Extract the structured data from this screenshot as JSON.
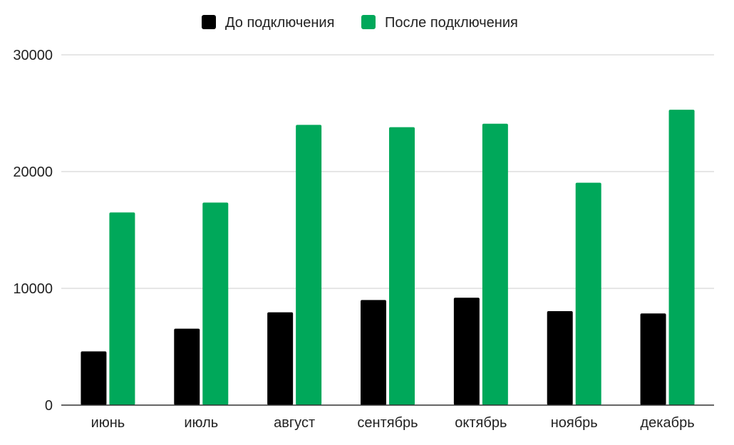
{
  "chart_data": {
    "type": "bar",
    "title": "",
    "xlabel": "",
    "ylabel": "",
    "categories": [
      "июнь",
      "июль",
      "август",
      "сентябрь",
      "октябрь",
      "ноябрь",
      "декабрь"
    ],
    "series": [
      {
        "name": "До подключения",
        "color": "#000000",
        "values": [
          4600,
          6550,
          7950,
          9000,
          9200,
          8050,
          7850
        ]
      },
      {
        "name": "После подключения",
        "color": "#00a85a",
        "values": [
          16500,
          17350,
          24000,
          23800,
          24100,
          19050,
          25300
        ]
      }
    ],
    "ylim": [
      0,
      30000
    ],
    "yticks": [
      0,
      10000,
      20000,
      30000
    ],
    "grid": true,
    "legend_position": "top-center"
  }
}
